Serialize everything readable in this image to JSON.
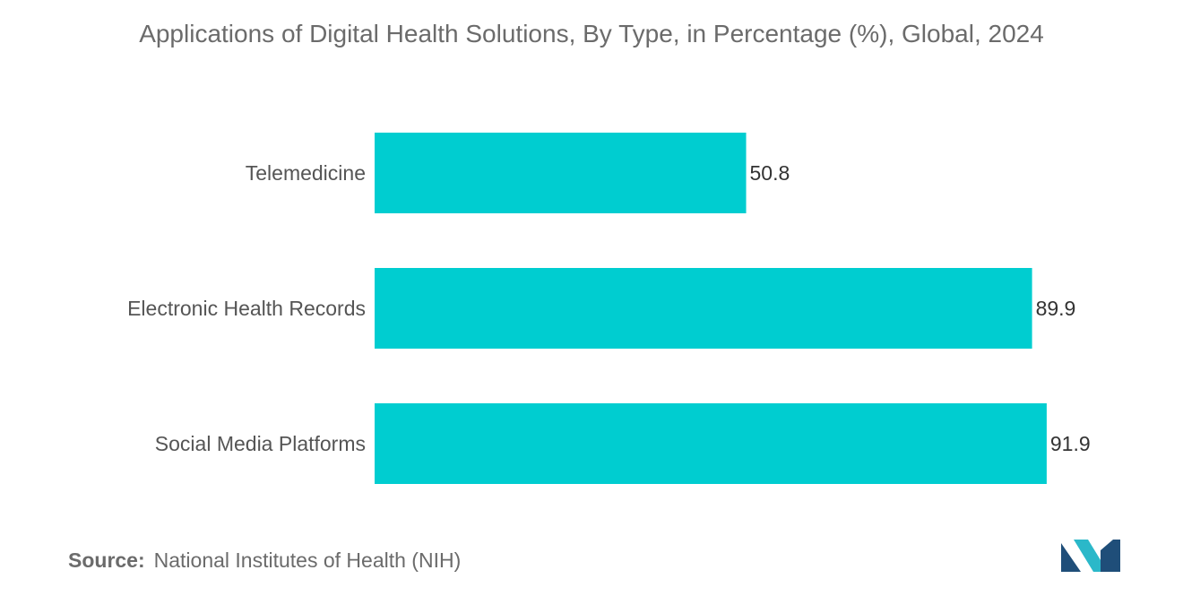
{
  "chart_data": {
    "type": "bar",
    "orientation": "horizontal",
    "title": "Applications of Digital Health Solutions, By Type, in Percentage (%), Global, 2024",
    "categories": [
      "Telemedicine",
      "Electronic Health Records",
      "Social Media Platforms"
    ],
    "values": [
      50.8,
      89.9,
      91.9
    ],
    "value_labels": [
      "50.8",
      "89.9",
      "91.9"
    ],
    "xlim": [
      0,
      100
    ],
    "grid": false,
    "legend": "none",
    "bar_color": "#00cdd0"
  },
  "source": {
    "label": "Source:",
    "text": "National Institutes of Health (NIH)"
  },
  "logo": {
    "icon": "mordor-intelligence-logo-icon",
    "colors": [
      "#1f4e79",
      "#2bb8c9"
    ]
  }
}
